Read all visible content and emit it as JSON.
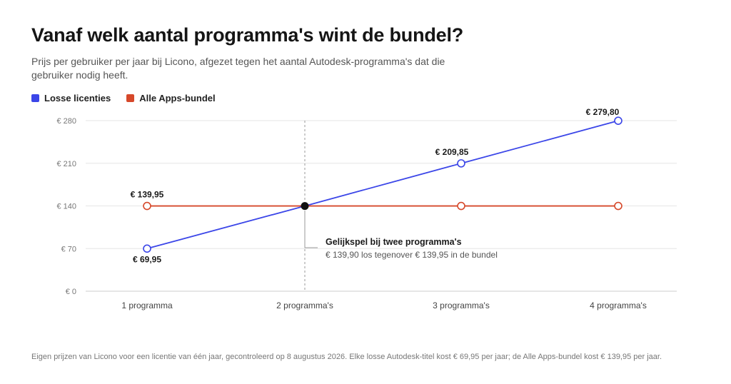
{
  "header": {
    "title": "Vanaf welk aantal programma's wint de bundel?",
    "subtitle": "Prijs per gebruiker per jaar bij Licono, afgezet tegen het aantal Autodesk-programma's dat die gebruiker nodig heeft."
  },
  "colors": {
    "losse": "#3b46e8",
    "bundel": "#d6482a",
    "grid": "#e6e6e6",
    "axis_text": "#777777",
    "marker": "#111111"
  },
  "chart_data": {
    "type": "line",
    "categories": [
      "1 programma",
      "2 programma's",
      "3 programma's",
      "4 programma's"
    ],
    "ylim": [
      0,
      280
    ],
    "yticks": [
      0,
      70,
      140,
      210,
      280
    ],
    "ytick_labels": [
      "€ 0",
      "€ 70",
      "€ 140",
      "€ 210",
      "€ 280"
    ],
    "grid": true,
    "legend_position": "top-left",
    "series": [
      {
        "name": "Losse licenties",
        "values": [
          69.95,
          139.9,
          209.85,
          279.8
        ],
        "data_labels": [
          "€ 69,95",
          "",
          "€ 209,85",
          "€ 279,80"
        ]
      },
      {
        "name": "Alle Apps-bundel",
        "values": [
          139.95,
          139.95,
          139.95,
          139.95
        ],
        "data_labels": [
          "€ 139,95",
          "",
          "",
          ""
        ]
      }
    ],
    "annotation": {
      "title": "Gelijkspel bij twee programma's",
      "text": "€ 139,90 los tegenover € 139,95 in de bundel",
      "category_index": 1,
      "value": 139.9
    }
  },
  "footnote": "Eigen prijzen van Licono voor een licentie van één jaar, gecontroleerd op 8 augustus 2026. Elke losse Autodesk-titel kost € 69,95 per jaar; de Alle Apps-bundel kost € 139,95 per jaar."
}
